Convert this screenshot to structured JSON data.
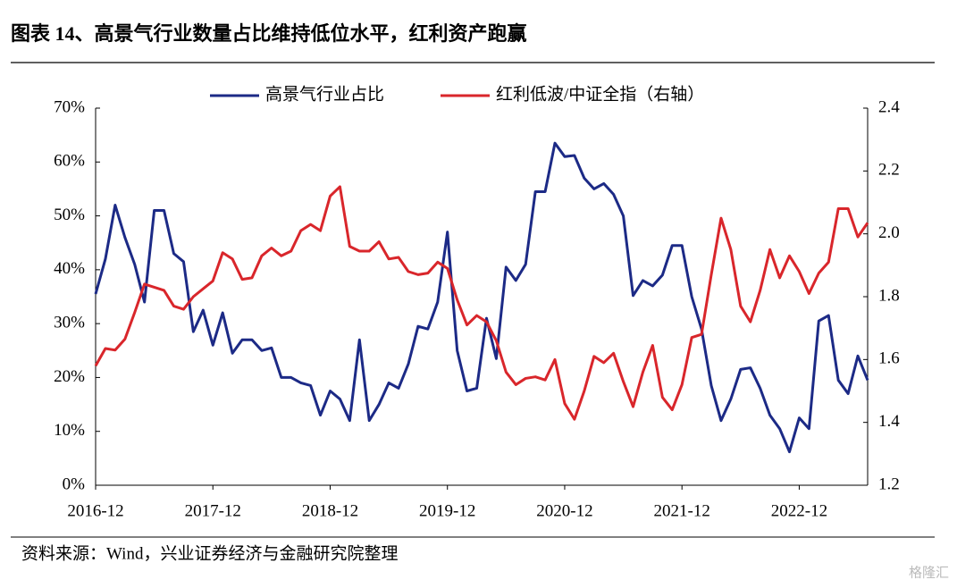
{
  "title": "图表 14、高景气行业数量占比维持低位水平，红利资产跑赢",
  "source": "资料来源：Wind，兴业证券经济与金融研究院整理",
  "watermark": "格隆汇",
  "chart_data": {
    "type": "line",
    "categories": [
      "2016-12",
      null,
      null,
      null,
      null,
      null,
      null,
      null,
      null,
      null,
      null,
      null,
      "2017-12",
      null,
      null,
      null,
      null,
      null,
      null,
      null,
      null,
      null,
      null,
      null,
      "2018-12",
      null,
      null,
      null,
      null,
      null,
      null,
      null,
      null,
      null,
      null,
      null,
      "2019-12",
      null,
      null,
      null,
      null,
      null,
      null,
      null,
      null,
      null,
      null,
      null,
      "2020-12",
      null,
      null,
      null,
      null,
      null,
      null,
      null,
      null,
      null,
      null,
      null,
      "2021-12",
      null,
      null,
      null,
      null,
      null,
      null,
      null,
      null,
      null,
      null,
      null,
      "2022-12",
      null,
      null,
      null,
      null,
      null,
      null,
      null
    ],
    "series": [
      {
        "name": "高景气行业占比",
        "color": "#1c2a86",
        "axis": "y",
        "values": [
          35.5,
          42,
          52,
          46,
          41,
          34,
          51,
          51,
          43,
          41.5,
          28.5,
          32.5,
          26,
          32,
          24.5,
          27,
          27,
          25,
          25.5,
          20,
          20,
          19,
          18.5,
          13,
          17.5,
          16,
          12,
          27,
          12,
          15,
          19,
          18,
          22.5,
          29.5,
          29,
          34,
          47,
          25,
          17.5,
          18,
          31,
          23.5,
          40.5,
          38,
          41,
          54.5,
          54.5,
          63.5,
          61,
          61.2,
          57,
          55,
          56,
          54,
          50,
          35.2,
          38,
          37,
          39,
          44.5,
          44.5,
          35,
          29,
          18.5,
          12,
          16,
          21.5,
          21.8,
          18,
          13,
          10.5,
          6.2,
          12.5,
          10.5,
          30.5,
          31.5,
          19.5,
          17,
          24,
          19.5
        ]
      },
      {
        "name": "红利低波/中证全指（右轴）",
        "color": "#d9262b",
        "axis": "y2",
        "values": [
          1.58,
          1.635,
          1.63,
          1.665,
          1.75,
          1.84,
          1.83,
          1.82,
          1.77,
          1.76,
          1.8,
          1.825,
          1.85,
          1.94,
          1.92,
          1.855,
          1.86,
          1.93,
          1.955,
          1.93,
          1.945,
          2.01,
          2.03,
          2.01,
          2.12,
          2.15,
          1.96,
          1.945,
          1.945,
          1.975,
          1.92,
          1.925,
          1.88,
          1.87,
          1.875,
          1.91,
          1.89,
          1.79,
          1.71,
          1.74,
          1.72,
          1.66,
          1.56,
          1.52,
          1.54,
          1.545,
          1.535,
          1.6,
          1.46,
          1.41,
          1.5,
          1.61,
          1.59,
          1.62,
          1.53,
          1.45,
          1.56,
          1.645,
          1.48,
          1.44,
          1.52,
          1.67,
          1.68,
          1.87,
          2.05,
          1.95,
          1.77,
          1.72,
          1.82,
          1.95,
          1.86,
          1.93,
          1.88,
          1.81,
          1.875,
          1.91,
          2.08,
          2.08,
          1.99,
          2.035
        ]
      }
    ],
    "ylim": [
      0,
      70
    ],
    "yticks": [
      {
        "value": 0,
        "label": "0%"
      },
      {
        "value": 10,
        "label": "10%"
      },
      {
        "value": 20,
        "label": "20%"
      },
      {
        "value": 30,
        "label": "30%"
      },
      {
        "value": 40,
        "label": "40%"
      },
      {
        "value": 50,
        "label": "50%"
      },
      {
        "value": 60,
        "label": "60%"
      },
      {
        "value": 70,
        "label": "70%"
      }
    ],
    "y2lim": [
      1.2,
      2.4
    ],
    "y2ticks": [
      1.2,
      1.4,
      1.6,
      1.8,
      {
        "value": 2,
        "label": "2.0"
      },
      2.2,
      2.4
    ],
    "legend": "top",
    "grid": false
  }
}
